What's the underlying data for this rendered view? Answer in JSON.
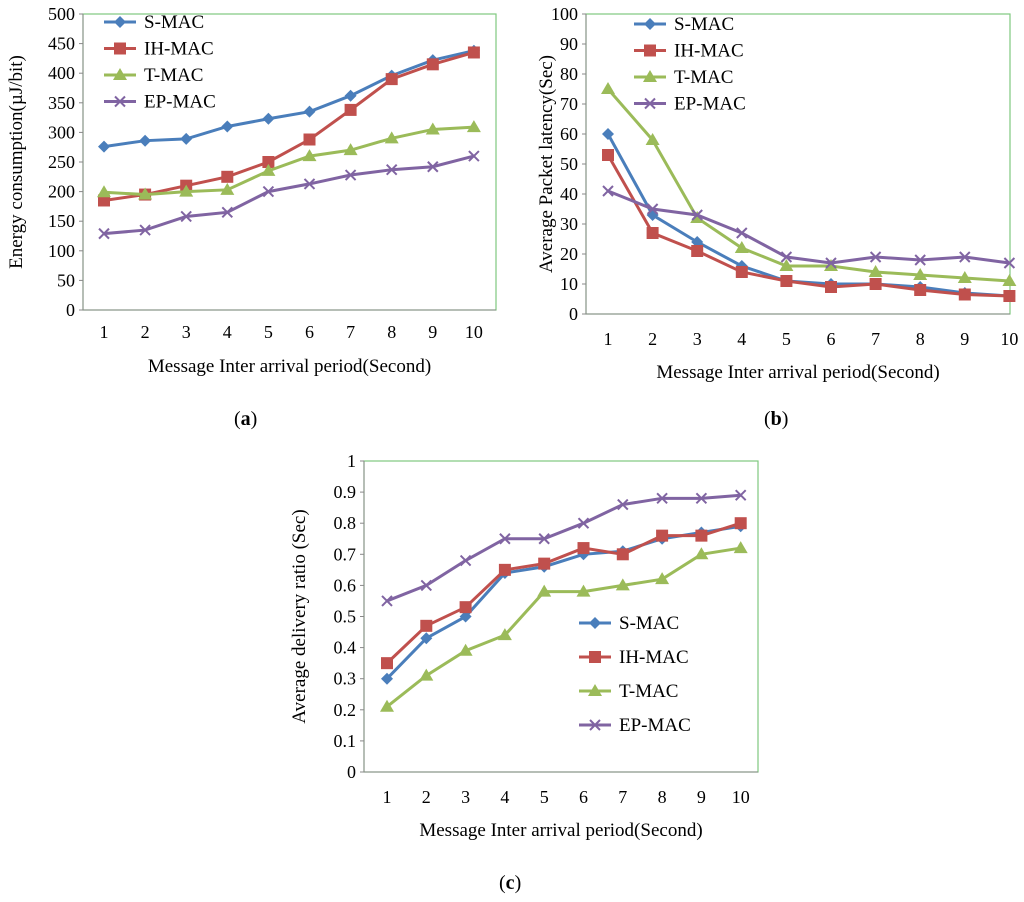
{
  "colors": {
    "S-MAC": "#4a7ebb",
    "IH-MAC": "#c0504d",
    "T-MAC": "#9bbb59",
    "EP-MAC": "#8064a2",
    "plot_border": "#7fc97f"
  },
  "markers": {
    "S-MAC": "diamond",
    "IH-MAC": "square",
    "T-MAC": "triangle",
    "EP-MAC": "x"
  },
  "chart_data": [
    {
      "id": "a",
      "type": "line",
      "caption_letter": "a",
      "xlabel": "Message Inter arrival period(Second)",
      "ylabel": "Energy consumption(µJ/bit)",
      "categories": [
        "1",
        "2",
        "3",
        "4",
        "5",
        "6",
        "7",
        "8",
        "9",
        "10"
      ],
      "ylim": [
        0,
        500
      ],
      "yticks": [
        "0",
        "50",
        "100",
        "150",
        "200",
        "250",
        "300",
        "350",
        "400",
        "450",
        "500"
      ],
      "legend_position": "top-left",
      "series": [
        {
          "name": "S-MAC",
          "values": [
            276,
            286,
            289,
            310,
            323,
            335,
            362,
            396,
            422,
            438
          ]
        },
        {
          "name": "IH-MAC",
          "values": [
            185,
            195,
            210,
            225,
            250,
            288,
            338,
            390,
            415,
            435
          ]
        },
        {
          "name": "T-MAC",
          "values": [
            199,
            195,
            200,
            203,
            235,
            260,
            270,
            290,
            305,
            309
          ]
        },
        {
          "name": "EP-MAC",
          "values": [
            129,
            135,
            158,
            165,
            200,
            213,
            228,
            237,
            242,
            260
          ]
        }
      ]
    },
    {
      "id": "b",
      "type": "line",
      "caption_letter": "b",
      "xlabel": "Message Inter arrival period(Second)",
      "ylabel": "Average Packet latency(Sec)",
      "categories": [
        "1",
        "2",
        "3",
        "4",
        "5",
        "6",
        "7",
        "8",
        "9",
        "10"
      ],
      "ylim": [
        0,
        100
      ],
      "yticks": [
        "0",
        "10",
        "20",
        "30",
        "40",
        "50",
        "60",
        "70",
        "80",
        "90",
        "100"
      ],
      "legend_position": "top-center",
      "series": [
        {
          "name": "S-MAC",
          "values": [
            60,
            33,
            24,
            16,
            11,
            10,
            10,
            9,
            7,
            6
          ]
        },
        {
          "name": "IH-MAC",
          "values": [
            53,
            27,
            21,
            14,
            11,
            9,
            10,
            8,
            6.5,
            6
          ]
        },
        {
          "name": "T-MAC",
          "values": [
            75,
            58,
            32,
            22,
            16,
            16,
            14,
            13,
            12,
            11
          ]
        },
        {
          "name": "EP-MAC",
          "values": [
            41,
            35,
            33,
            27,
            19,
            17,
            19,
            18,
            19,
            17
          ]
        }
      ]
    },
    {
      "id": "c",
      "type": "line",
      "caption_letter": "c",
      "xlabel": "Message Inter arrival period(Second)",
      "ylabel": "Average delivery ratio (Sec)",
      "categories": [
        "1",
        "2",
        "3",
        "4",
        "5",
        "6",
        "7",
        "8",
        "9",
        "10"
      ],
      "ylim": [
        0,
        1
      ],
      "yticks": [
        "0",
        "0.1",
        "0.2",
        "0.3",
        "0.4",
        "0.5",
        "0.6",
        "0.7",
        "0.8",
        "0.9",
        "1"
      ],
      "legend_position": "bottom-right",
      "series": [
        {
          "name": "S-MAC",
          "values": [
            0.3,
            0.43,
            0.5,
            0.64,
            0.66,
            0.7,
            0.71,
            0.75,
            0.77,
            0.79
          ]
        },
        {
          "name": "IH-MAC",
          "values": [
            0.35,
            0.47,
            0.53,
            0.65,
            0.67,
            0.72,
            0.7,
            0.76,
            0.76,
            0.8
          ]
        },
        {
          "name": "T-MAC",
          "values": [
            0.21,
            0.31,
            0.39,
            0.44,
            0.58,
            0.58,
            0.6,
            0.62,
            0.7,
            0.72
          ]
        },
        {
          "name": "EP-MAC",
          "values": [
            0.55,
            0.6,
            0.68,
            0.75,
            0.75,
            0.8,
            0.86,
            0.88,
            0.88,
            0.89
          ]
        }
      ]
    }
  ]
}
